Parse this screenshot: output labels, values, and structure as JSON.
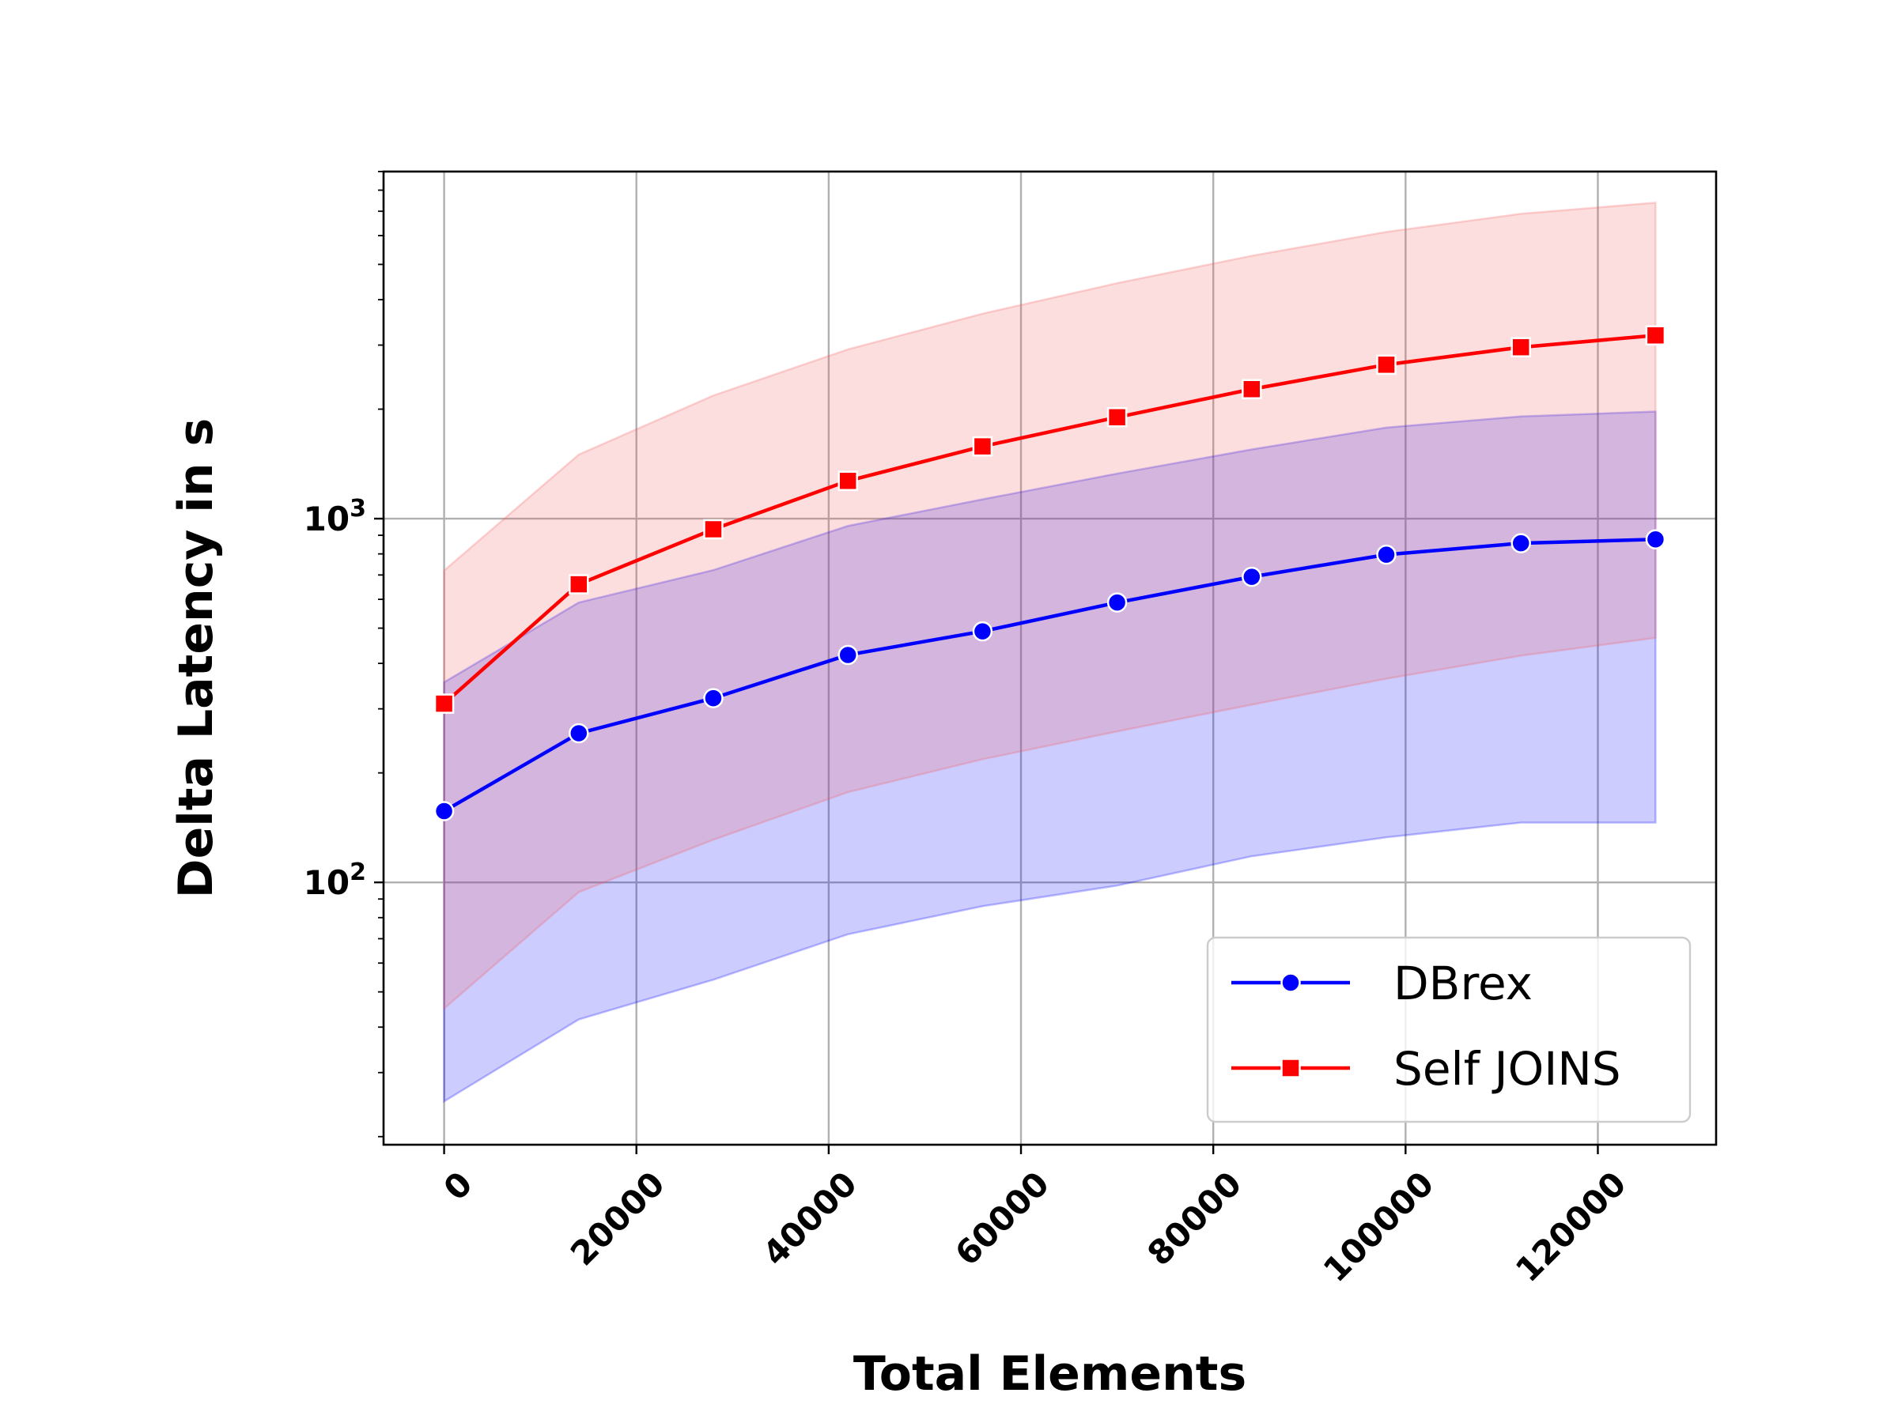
{
  "chart_data": {
    "type": "line",
    "title": "",
    "xlabel": "Total Elements",
    "ylabel": "Delta Latency in s",
    "yscale": "log",
    "xlim": [
      -6300,
      132300
    ],
    "ylim": [
      19,
      9000
    ],
    "x": [
      0,
      14000,
      28000,
      42000,
      56000,
      70000,
      84000,
      98000,
      112000,
      126000
    ],
    "xticks": [
      0,
      20000,
      40000,
      60000,
      80000,
      100000,
      120000
    ],
    "xtick_labels": [
      "0",
      "20000",
      "40000",
      "60000",
      "80000",
      "100000",
      "120000"
    ],
    "yticks": [
      100,
      1000
    ],
    "ytick_labels": [
      {
        "base": "10",
        "exp": "2"
      },
      {
        "base": "10",
        "exp": "3"
      }
    ],
    "grid": true,
    "legend": "lower right",
    "series": [
      {
        "name": "DBrex",
        "color": "#0000ff",
        "band_color": "#0000ff",
        "marker": "circle",
        "values": [
          157,
          257,
          321,
          422,
          490,
          588,
          692,
          796,
          856,
          877
        ],
        "lower": [
          25,
          42,
          54,
          72,
          86,
          98,
          118,
          133,
          146,
          146
        ],
        "upper": [
          355,
          588,
          722,
          955,
          1130,
          1330,
          1550,
          1780,
          1910,
          1970
        ]
      },
      {
        "name": "Self JOINS",
        "color": "#ff0000",
        "band_color": "#f35b5b",
        "marker": "square",
        "values": [
          310,
          660,
          935,
          1270,
          1580,
          1900,
          2270,
          2650,
          2960,
          3190
        ],
        "lower": [
          45,
          94,
          131,
          177,
          218,
          260,
          308,
          363,
          420,
          470
        ],
        "upper": [
          720,
          1500,
          2180,
          2920,
          3660,
          4440,
          5280,
          6140,
          6890,
          7390
        ]
      }
    ]
  }
}
